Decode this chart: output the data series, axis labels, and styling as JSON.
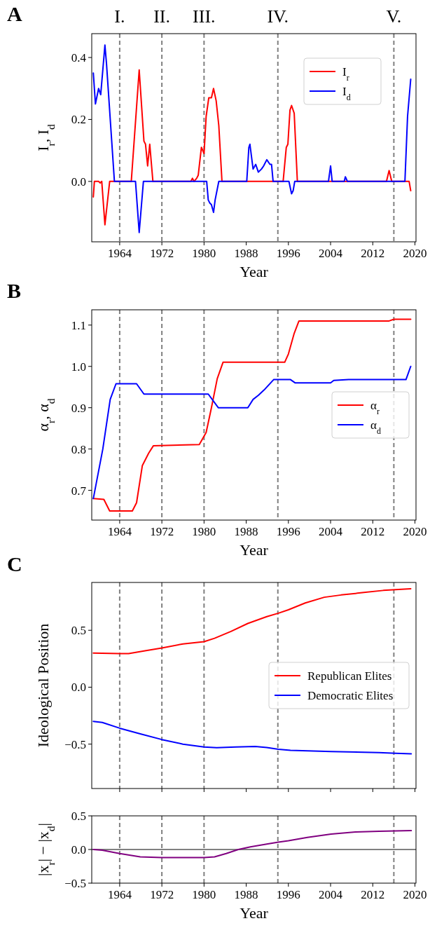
{
  "chart_data": [
    {
      "type": "line",
      "title": "A",
      "xlabel": "Year",
      "ylabel": "I$_{r}$, I$_{d}$",
      "xlim": [
        1958.7,
        2020.2
      ],
      "xticks": [
        1964,
        1972,
        1980,
        1988,
        1996,
        2004,
        2012,
        2020
      ],
      "ylim": [
        -0.195,
        0.477
      ],
      "yticks": [
        {
          "value": 0,
          "label": "0.0"
        },
        {
          "value": 0.2,
          "label": "0.2"
        },
        {
          "value": 0.4,
          "label": "0.4"
        }
      ],
      "legend": "top right",
      "grid": false,
      "ref_lines": [
        {
          "axis": "x",
          "value": 1964,
          "label": "I.",
          "color": "#808080",
          "line_style": "dashed"
        },
        {
          "axis": "x",
          "value": 1972,
          "label": "II.",
          "color": "#808080",
          "line_style": "dashed"
        },
        {
          "axis": "x",
          "value": 1980,
          "label": "III.",
          "color": "#808080",
          "line_style": "dashed"
        },
        {
          "axis": "x",
          "value": 1994,
          "label": "IV.",
          "color": "#808080",
          "line_style": "dashed"
        },
        {
          "axis": "x",
          "value": 2016,
          "label": "V.",
          "color": "#808080",
          "line_style": "dashed"
        }
      ],
      "series": [
        {
          "name": "I$_{r}$",
          "color": "#ff0000",
          "x": [
            1959,
            1959.2,
            1960,
            1960.3,
            1960.6,
            1961.2,
            1962.1,
            1966.2,
            1967.7,
            1968.6,
            1968.9,
            1969.3,
            1969.7,
            1970.3,
            1977.5,
            1977.8,
            1978.1,
            1978.6,
            1978.9,
            1979.5,
            1980,
            1980.4,
            1980.9,
            1981.4,
            1981.8,
            1982.3,
            1982.8,
            1983.4,
            1995,
            1995.6,
            1995.9,
            1996.3,
            1996.6,
            1997.1,
            1997.7,
            2014.6,
            2015.1,
            2015.6,
            2018.9,
            2019.2
          ],
          "values": [
            -0.05,
            0,
            0,
            -0.005,
            0,
            -0.14,
            0,
            0,
            0.36,
            0.13,
            0.12,
            0.05,
            0.12,
            0,
            0,
            0.01,
            0,
            0.01,
            0.02,
            0.11,
            0.09,
            0.21,
            0.27,
            0.27,
            0.3,
            0.26,
            0.18,
            0,
            0,
            0.11,
            0.12,
            0.23,
            0.245,
            0.22,
            0,
            0,
            0.035,
            0,
            0,
            -0.03
          ]
        },
        {
          "name": "I$_{d}$",
          "color": "#0000ff",
          "x": [
            1959,
            1959.4,
            1960,
            1960.4,
            1961.2,
            1961.5,
            1963,
            1967,
            1967.7,
            1968.5,
            1980.5,
            1980.8,
            1981.1,
            1981.4,
            1981.8,
            1982.1,
            1982.8,
            1988.1,
            1988.5,
            1988.7,
            1989.3,
            1989.8,
            1990.3,
            1990.9,
            1991.3,
            1991.9,
            1992.5,
            1992.8,
            1993.1,
            1996.1,
            1996.6,
            1996.9,
            1997.2,
            2003.6,
            2004,
            2004.3,
            2006.6,
            2006.8,
            2007.2,
            2018.1,
            2018.6,
            2019.2
          ],
          "values": [
            0.35,
            0.25,
            0.3,
            0.28,
            0.44,
            0.38,
            0,
            0,
            -0.165,
            0,
            0,
            -0.06,
            -0.07,
            -0.075,
            -0.1,
            -0.06,
            0,
            0,
            0.11,
            0.12,
            0.04,
            0.055,
            0.03,
            0.04,
            0.05,
            0.07,
            0.055,
            0.055,
            0,
            0,
            -0.04,
            -0.03,
            0,
            0,
            0.05,
            0,
            0,
            0.015,
            0,
            0,
            0.21,
            0.33
          ]
        }
      ]
    },
    {
      "type": "line",
      "title": "B",
      "xlabel": "Year",
      "ylabel": "α$_{r}$, α$_{d}$",
      "xlim": [
        1958.7,
        2020.2
      ],
      "xticks": [
        1964,
        1972,
        1980,
        1988,
        1996,
        2004,
        2012,
        2020
      ],
      "ylim": [
        0.628,
        1.137
      ],
      "yticks": [
        {
          "value": 0.7,
          "label": "0.7"
        },
        {
          "value": 0.8,
          "label": "0.8"
        },
        {
          "value": 0.9,
          "label": "0.9"
        },
        {
          "value": 1,
          "label": "1.0"
        },
        {
          "value": 1.1,
          "label": "1.1"
        }
      ],
      "legend": "right",
      "grid": false,
      "ref_lines": [
        {
          "axis": "x",
          "value": 1964,
          "color": "#808080",
          "line_style": "dashed"
        },
        {
          "axis": "x",
          "value": 1972,
          "color": "#808080",
          "line_style": "dashed"
        },
        {
          "axis": "x",
          "value": 1980,
          "color": "#808080",
          "line_style": "dashed"
        },
        {
          "axis": "x",
          "value": 1994,
          "color": "#808080",
          "line_style": "dashed"
        },
        {
          "axis": "x",
          "value": 2016,
          "color": "#808080",
          "line_style": "dashed"
        }
      ],
      "series": [
        {
          "name": "α$_{r}$",
          "color": "#ff0000",
          "x": [
            1959,
            1961,
            1962.1,
            1966.4,
            1967.2,
            1968.3,
            1969.5,
            1970.4,
            1979.1,
            1980.4,
            1981.4,
            1982.5,
            1983.6,
            1995.3,
            1996,
            1997.1,
            1998,
            2015.1,
            2016,
            2019.2
          ],
          "values": [
            0.68,
            0.678,
            0.65,
            0.65,
            0.67,
            0.76,
            0.79,
            0.808,
            0.811,
            0.84,
            0.9,
            0.97,
            1.01,
            1.01,
            1.03,
            1.08,
            1.11,
            1.11,
            1.114,
            1.114
          ]
        },
        {
          "name": "α$_{d}$",
          "color": "#0000ff",
          "x": [
            1959,
            1960.8,
            1962.2,
            1963.3,
            1967.2,
            1968.6,
            1980.8,
            1982.7,
            1988.3,
            1989.3,
            1990.3,
            1991.4,
            1993.2,
            1996.4,
            1997.3,
            2004,
            2004.6,
            2007.4,
            2018.3,
            2019.2
          ],
          "values": [
            0.68,
            0.8,
            0.92,
            0.958,
            0.958,
            0.933,
            0.933,
            0.9,
            0.9,
            0.92,
            0.93,
            0.943,
            0.968,
            0.968,
            0.96,
            0.96,
            0.966,
            0.968,
            0.968,
            1.0
          ]
        }
      ]
    },
    {
      "type": "line",
      "title": "C",
      "ylabel": "Ideological Position",
      "xlim": [
        1958.7,
        2020.2
      ],
      "xticks": [
        1964,
        1972,
        1980,
        1988,
        1996,
        2004,
        2012,
        2020
      ],
      "ylim": [
        -0.89,
        0.92
      ],
      "yticks": [
        {
          "value": -0.5,
          "label": "−0.5"
        },
        {
          "value": 0,
          "label": "0.0"
        },
        {
          "value": 0.5,
          "label": "0.5"
        }
      ],
      "legend": "right",
      "grid": false,
      "tick_labels": "y",
      "ref_lines": [
        {
          "axis": "x",
          "value": 1964,
          "color": "#808080",
          "line_style": "dashed"
        },
        {
          "axis": "x",
          "value": 1972,
          "color": "#808080",
          "line_style": "dashed"
        },
        {
          "axis": "x",
          "value": 1980,
          "color": "#808080",
          "line_style": "dashed"
        },
        {
          "axis": "x",
          "value": 1994,
          "color": "#808080",
          "line_style": "dashed"
        },
        {
          "axis": "x",
          "value": 2016,
          "color": "#808080",
          "line_style": "dashed"
        }
      ],
      "series": [
        {
          "name": "Republican Elites",
          "color": "#ff0000",
          "x": [
            1959,
            1964,
            1965.7,
            1968.8,
            1972,
            1976,
            1980,
            1982,
            1985.1,
            1988.3,
            1991.9,
            1994.1,
            1996,
            1999.2,
            2002.8,
            2006,
            2010,
            2014,
            2019.2
          ],
          "values": [
            0.3,
            0.295,
            0.295,
            0.32,
            0.345,
            0.38,
            0.4,
            0.43,
            0.49,
            0.56,
            0.62,
            0.65,
            0.68,
            0.74,
            0.79,
            0.81,
            0.83,
            0.85,
            0.865
          ]
        },
        {
          "name": "Democratic Elites",
          "color": "#0000ff",
          "x": [
            1959,
            1960.7,
            1964,
            1967.9,
            1972,
            1976,
            1980,
            1982.4,
            1986,
            1989.7,
            1991.9,
            1994.1,
            1996.4,
            2004.1,
            2013.2,
            2016.4,
            2019.3
          ],
          "values": [
            -0.3,
            -0.31,
            -0.36,
            -0.41,
            -0.46,
            -0.5,
            -0.525,
            -0.532,
            -0.525,
            -0.52,
            -0.53,
            -0.545,
            -0.555,
            -0.565,
            -0.575,
            -0.58,
            -0.585
          ]
        }
      ]
    },
    {
      "type": "line",
      "xlabel": "Year",
      "ylabel": "|x$_{r}$| − |x$_{d}$|",
      "xlim": [
        1958.7,
        2020.2
      ],
      "xticks": [
        1964,
        1972,
        1980,
        1988,
        1996,
        2004,
        2012,
        2020
      ],
      "ylim": [
        -0.5,
        0.5
      ],
      "yticks": [
        {
          "value": -0.5,
          "label": "−0.5"
        },
        {
          "value": 0,
          "label": "0.0"
        },
        {
          "value": 0.5,
          "label": "0.5"
        }
      ],
      "grid": false,
      "ref_lines": [
        {
          "axis": "y",
          "value": 0,
          "color": "#808080",
          "line_style": "solid"
        },
        {
          "axis": "x",
          "value": 1964,
          "color": "#808080",
          "line_style": "dashed"
        },
        {
          "axis": "x",
          "value": 1972,
          "color": "#808080",
          "line_style": "dashed"
        },
        {
          "axis": "x",
          "value": 1980,
          "color": "#808080",
          "line_style": "dashed"
        },
        {
          "axis": "x",
          "value": 1994,
          "color": "#808080",
          "line_style": "dashed"
        },
        {
          "axis": "x",
          "value": 2016,
          "color": "#808080",
          "line_style": "dashed"
        }
      ],
      "series": [
        {
          "color": "#800080",
          "x": [
            1959,
            1960.7,
            1964,
            1967.9,
            1972,
            1980,
            1982,
            1984.2,
            1986.5,
            1988.8,
            1991.9,
            1994.1,
            1996,
            1999.6,
            2004.1,
            2008.7,
            2013.2,
            2019.3
          ],
          "values": [
            0,
            -0.01,
            -0.06,
            -0.11,
            -0.12,
            -0.12,
            -0.11,
            -0.06,
            0,
            0.04,
            0.08,
            0.11,
            0.13,
            0.18,
            0.23,
            0.26,
            0.27,
            0.28
          ]
        }
      ]
    }
  ]
}
